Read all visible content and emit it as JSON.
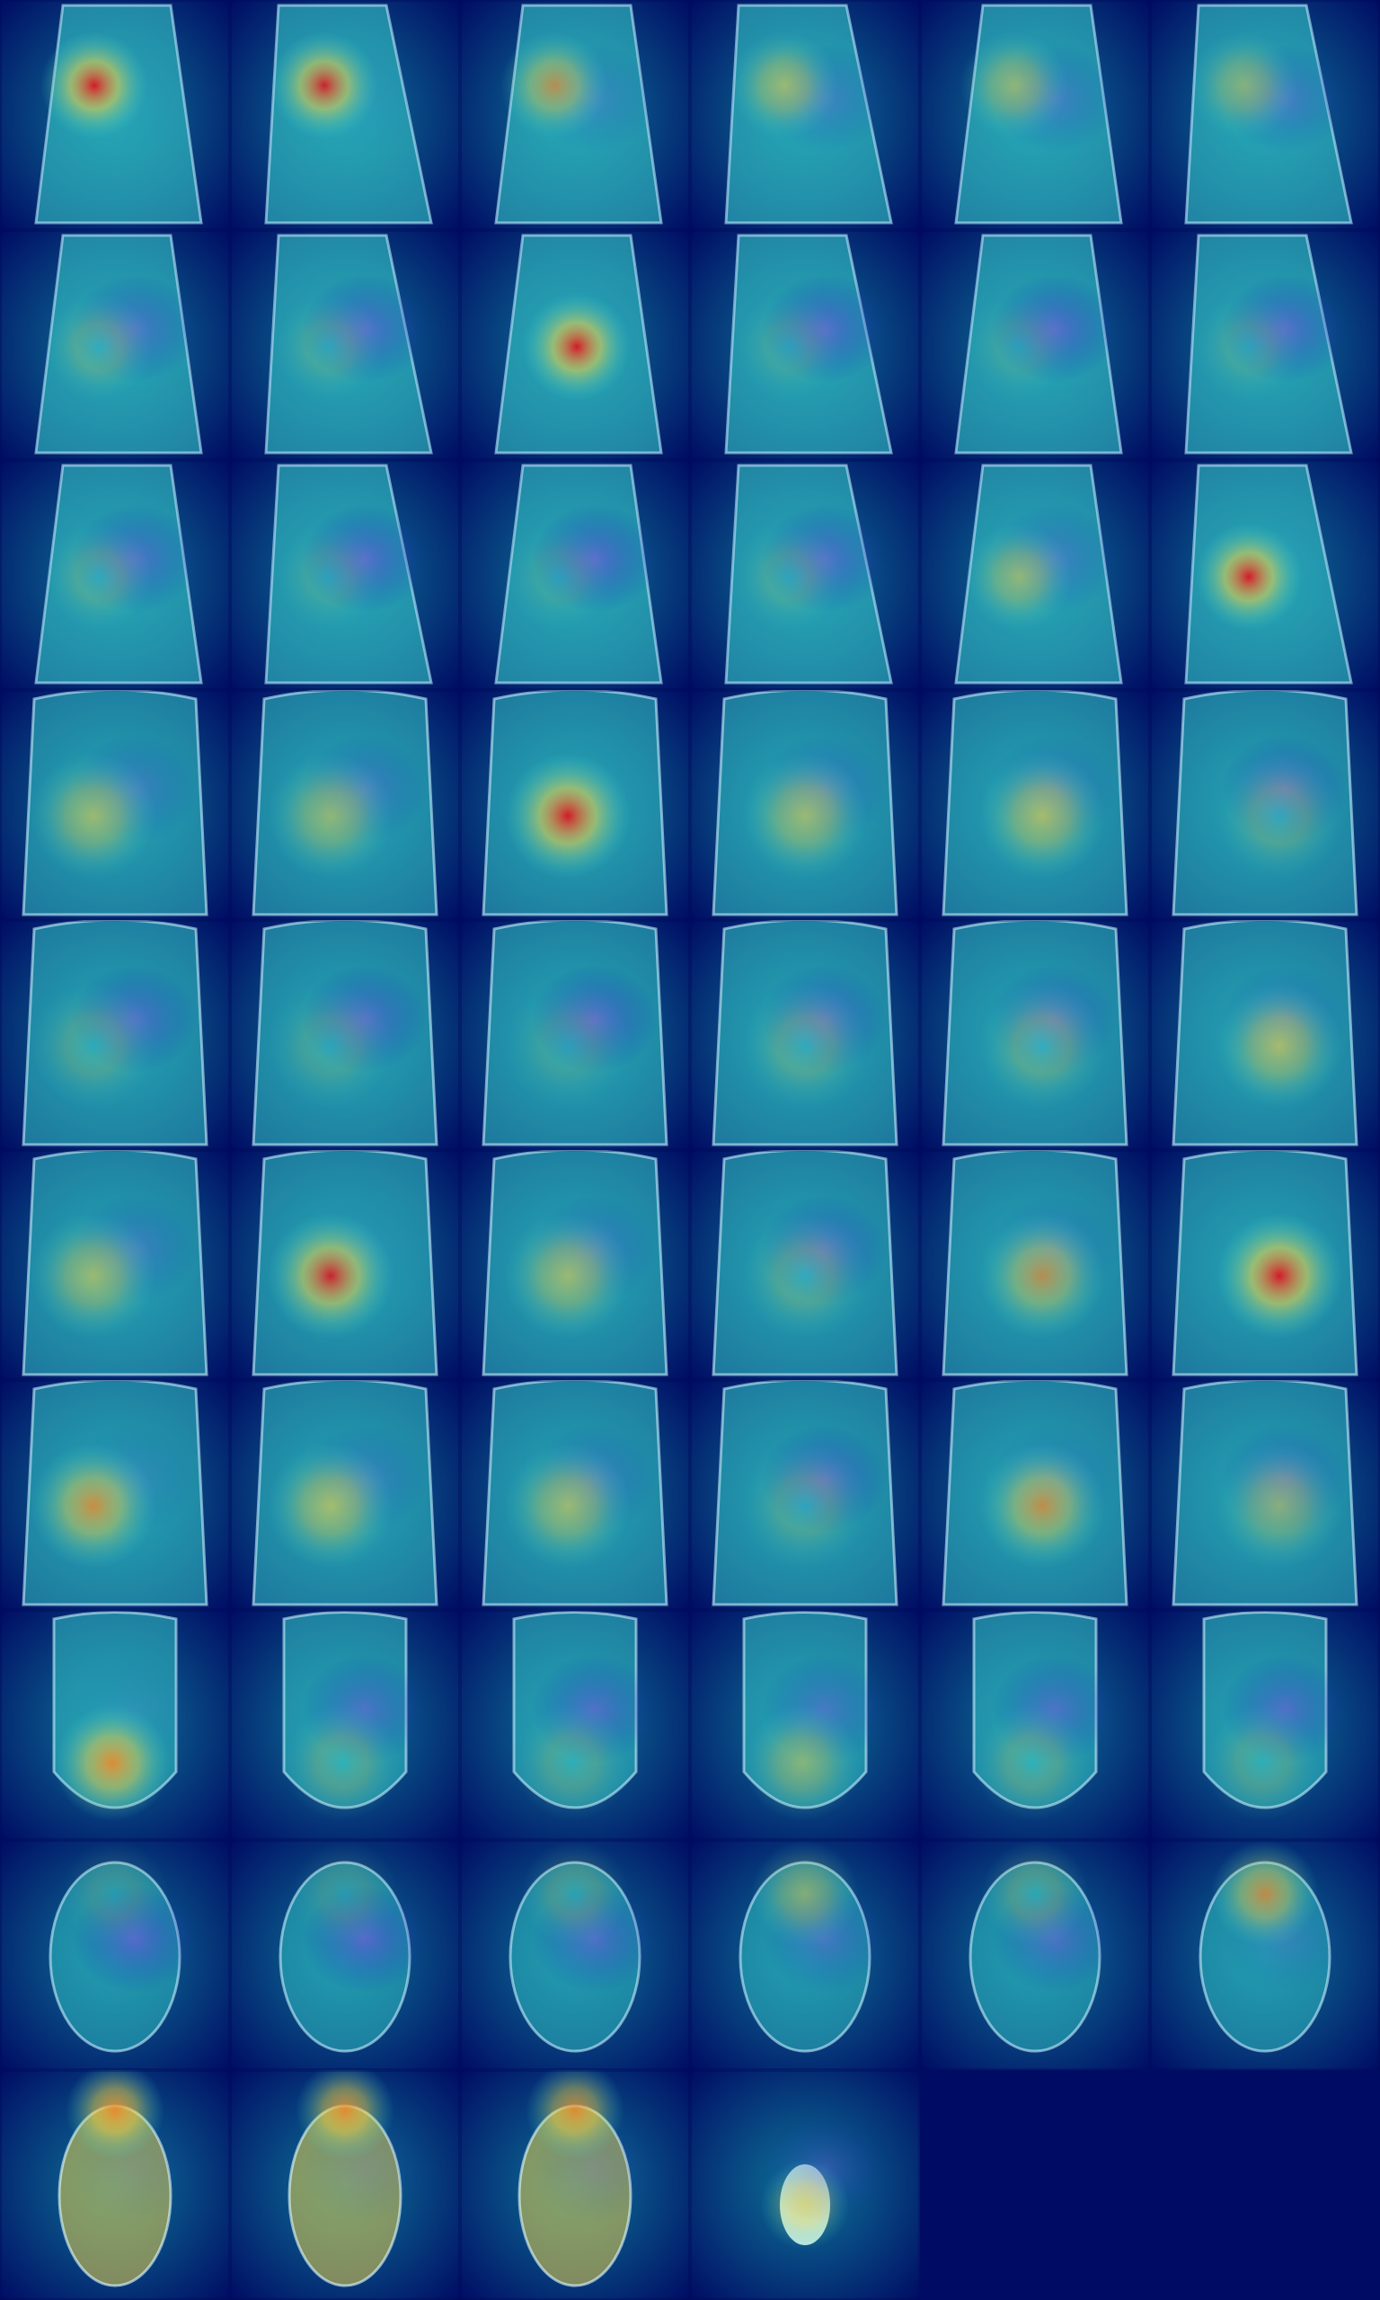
{
  "figure": {
    "description_visible_text": "",
    "grid": {
      "rows": 10,
      "cols": 6
    },
    "colors": {
      "background_deep_blue": "#000c64",
      "blue": "#0a2fb6",
      "cyan": "#3ad6d0",
      "teal": "#0f7c9a",
      "yellow": "#e8d24a",
      "orange": "#f08a2a",
      "red": "#d11a2a",
      "violet": "#6f55d8"
    },
    "tiles": [
      {
        "row": 1,
        "col": 1,
        "view": "sagittal",
        "hot": 0.95
      },
      {
        "row": 1,
        "col": 2,
        "view": "sagittal",
        "hot": 0.9
      },
      {
        "row": 1,
        "col": 3,
        "view": "sagittal",
        "hot": 0.65
      },
      {
        "row": 1,
        "col": 4,
        "view": "sagittal",
        "hot": 0.55
      },
      {
        "row": 1,
        "col": 5,
        "view": "sagittal",
        "hot": 0.5
      },
      {
        "row": 1,
        "col": 6,
        "view": "sagittal",
        "hot": 0.45
      },
      {
        "row": 2,
        "col": 1,
        "view": "sagittal",
        "hot": 0.35
      },
      {
        "row": 2,
        "col": 2,
        "view": "sagittal",
        "hot": 0.25
      },
      {
        "row": 2,
        "col": 3,
        "view": "sagittal",
        "hot": 0.95
      },
      {
        "row": 2,
        "col": 4,
        "view": "sagittal",
        "hot": 0.2
      },
      {
        "row": 2,
        "col": 5,
        "view": "sagittal",
        "hot": 0.18
      },
      {
        "row": 2,
        "col": 6,
        "view": "sagittal",
        "hot": 0.22
      },
      {
        "row": 3,
        "col": 1,
        "view": "sagittal",
        "hot": 0.3
      },
      {
        "row": 3,
        "col": 2,
        "view": "sagittal",
        "hot": 0.2
      },
      {
        "row": 3,
        "col": 3,
        "view": "sagittal",
        "hot": 0.18
      },
      {
        "row": 3,
        "col": 4,
        "view": "sagittal",
        "hot": 0.25
      },
      {
        "row": 3,
        "col": 5,
        "view": "sagittal",
        "hot": 0.5
      },
      {
        "row": 3,
        "col": 6,
        "view": "sagittal",
        "hot": 0.95
      },
      {
        "row": 4,
        "col": 1,
        "view": "coronal",
        "hot": 0.55
      },
      {
        "row": 4,
        "col": 2,
        "view": "coronal",
        "hot": 0.5
      },
      {
        "row": 4,
        "col": 3,
        "view": "coronal",
        "hot": 0.95
      },
      {
        "row": 4,
        "col": 4,
        "view": "coronal",
        "hot": 0.55
      },
      {
        "row": 4,
        "col": 5,
        "view": "coronal",
        "hot": 0.6
      },
      {
        "row": 4,
        "col": 6,
        "view": "coronal",
        "hot": 0.35
      },
      {
        "row": 5,
        "col": 1,
        "view": "coronal",
        "hot": 0.3
      },
      {
        "row": 5,
        "col": 2,
        "view": "coronal",
        "hot": 0.25
      },
      {
        "row": 5,
        "col": 3,
        "view": "coronal",
        "hot": 0.2
      },
      {
        "row": 5,
        "col": 4,
        "view": "coronal",
        "hot": 0.35
      },
      {
        "row": 5,
        "col": 5,
        "view": "coronal",
        "hot": 0.4
      },
      {
        "row": 5,
        "col": 6,
        "view": "coronal",
        "hot": 0.6
      },
      {
        "row": 6,
        "col": 1,
        "view": "coronal",
        "hot": 0.55
      },
      {
        "row": 6,
        "col": 2,
        "view": "coronal",
        "hot": 0.9
      },
      {
        "row": 6,
        "col": 3,
        "view": "coronal",
        "hot": 0.55
      },
      {
        "row": 6,
        "col": 4,
        "view": "coronal",
        "hot": 0.35
      },
      {
        "row": 6,
        "col": 5,
        "view": "coronal",
        "hot": 0.65
      },
      {
        "row": 6,
        "col": 6,
        "view": "coronal",
        "hot": 0.98
      },
      {
        "row": 7,
        "col": 1,
        "view": "coronal",
        "hot": 0.75
      },
      {
        "row": 7,
        "col": 2,
        "view": "coronal",
        "hot": 0.6
      },
      {
        "row": 7,
        "col": 3,
        "view": "coronal",
        "hot": 0.55
      },
      {
        "row": 7,
        "col": 4,
        "view": "coronal",
        "hot": 0.3
      },
      {
        "row": 7,
        "col": 5,
        "view": "coronal",
        "hot": 0.7
      },
      {
        "row": 7,
        "col": 6,
        "view": "coronal",
        "hot": 0.45
      },
      {
        "row": 8,
        "col": 1,
        "view": "axial-upper",
        "hot": 0.85
      },
      {
        "row": 8,
        "col": 2,
        "view": "axial-upper",
        "hot": 0.35
      },
      {
        "row": 8,
        "col": 3,
        "view": "axial-upper",
        "hot": 0.3
      },
      {
        "row": 8,
        "col": 4,
        "view": "axial-upper",
        "hot": 0.45
      },
      {
        "row": 8,
        "col": 5,
        "view": "axial-upper",
        "hot": 0.35
      },
      {
        "row": 8,
        "col": 6,
        "view": "axial-upper",
        "hot": 0.3
      },
      {
        "row": 9,
        "col": 1,
        "view": "axial",
        "hot": 0.2
      },
      {
        "row": 9,
        "col": 2,
        "view": "axial",
        "hot": 0.2
      },
      {
        "row": 9,
        "col": 3,
        "view": "axial",
        "hot": 0.3
      },
      {
        "row": 9,
        "col": 4,
        "view": "axial",
        "hot": 0.45
      },
      {
        "row": 9,
        "col": 5,
        "view": "axial",
        "hot": 0.35
      },
      {
        "row": 9,
        "col": 6,
        "view": "axial",
        "hot": 0.7
      },
      {
        "row": 10,
        "col": 1,
        "view": "axial-small",
        "hot": 0.85
      },
      {
        "row": 10,
        "col": 2,
        "view": "axial-small",
        "hot": 0.8
      },
      {
        "row": 10,
        "col": 3,
        "view": "axial-small",
        "hot": 0.75
      },
      {
        "row": 10,
        "col": 4,
        "view": "axial-tiny",
        "hot": 0.55
      },
      {
        "row": 10,
        "col": 5,
        "view": "empty",
        "hot": 0.0
      },
      {
        "row": 10,
        "col": 6,
        "view": "empty",
        "hot": 0.0
      }
    ]
  }
}
